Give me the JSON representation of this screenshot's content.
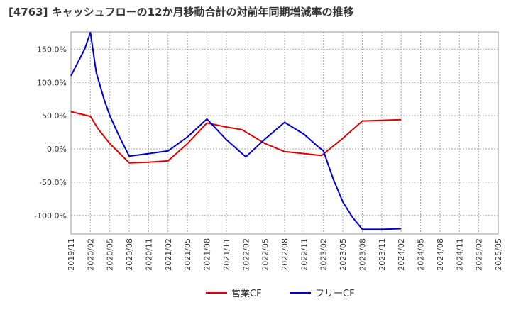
{
  "chart_data": {
    "type": "line",
    "title": "[4763]  キャッシュフローの12か月移動合計の対前年同期増減率の推移",
    "xlabel": "",
    "ylabel": "",
    "categories": [
      "2019/11",
      "2020/02",
      "2020/05",
      "2020/08",
      "2020/11",
      "2021/02",
      "2021/05",
      "2021/08",
      "2021/11",
      "2022/02",
      "2022/05",
      "2022/08",
      "2022/11",
      "2023/02",
      "2023/05",
      "2023/08",
      "2023/11",
      "2024/02",
      "2024/05",
      "2024/08",
      "2024/11",
      "2025/02",
      "2025/05"
    ],
    "ylim": [
      -128,
      176
    ],
    "yticks": [
      150,
      100,
      50,
      0,
      -50,
      -100
    ],
    "ytick_labels": [
      "150.0%",
      "100.0%",
      "50.0%",
      "0.0%",
      "-50.0%",
      "-100.0%"
    ],
    "grid": true,
    "legend_position": "bottom",
    "series": [
      {
        "name": "営業CF",
        "color": "#dd0000",
        "points": [
          [
            0,
            56
          ],
          [
            1,
            49
          ],
          [
            1.4,
            30
          ],
          [
            2,
            8
          ],
          [
            3,
            -21
          ],
          [
            4,
            -20
          ],
          [
            5,
            -18
          ],
          [
            6,
            8
          ],
          [
            7,
            39
          ],
          [
            8,
            33
          ],
          [
            8.8,
            29
          ],
          [
            10,
            8
          ],
          [
            11,
            -4
          ],
          [
            12,
            -7
          ],
          [
            12.9,
            -10
          ],
          [
            14,
            16
          ],
          [
            15,
            42
          ],
          [
            17,
            44
          ]
        ]
      },
      {
        "name": "フリーCF",
        "color": "#0000cc",
        "points": [
          [
            0,
            110
          ],
          [
            0.7,
            150
          ],
          [
            1,
            175
          ],
          [
            1.3,
            115
          ],
          [
            1.7,
            75
          ],
          [
            2,
            50
          ],
          [
            2.5,
            18
          ],
          [
            3,
            -11
          ],
          [
            4,
            -7
          ],
          [
            5,
            -3
          ],
          [
            6,
            18
          ],
          [
            7,
            45
          ],
          [
            8,
            14
          ],
          [
            9,
            -12
          ],
          [
            10,
            15
          ],
          [
            11,
            40
          ],
          [
            12,
            22
          ],
          [
            12.7,
            4
          ],
          [
            13,
            -3
          ],
          [
            13.5,
            -45
          ],
          [
            14,
            -80
          ],
          [
            14.5,
            -103
          ],
          [
            15,
            -121
          ],
          [
            16,
            -121
          ],
          [
            17,
            -120
          ]
        ]
      }
    ]
  }
}
